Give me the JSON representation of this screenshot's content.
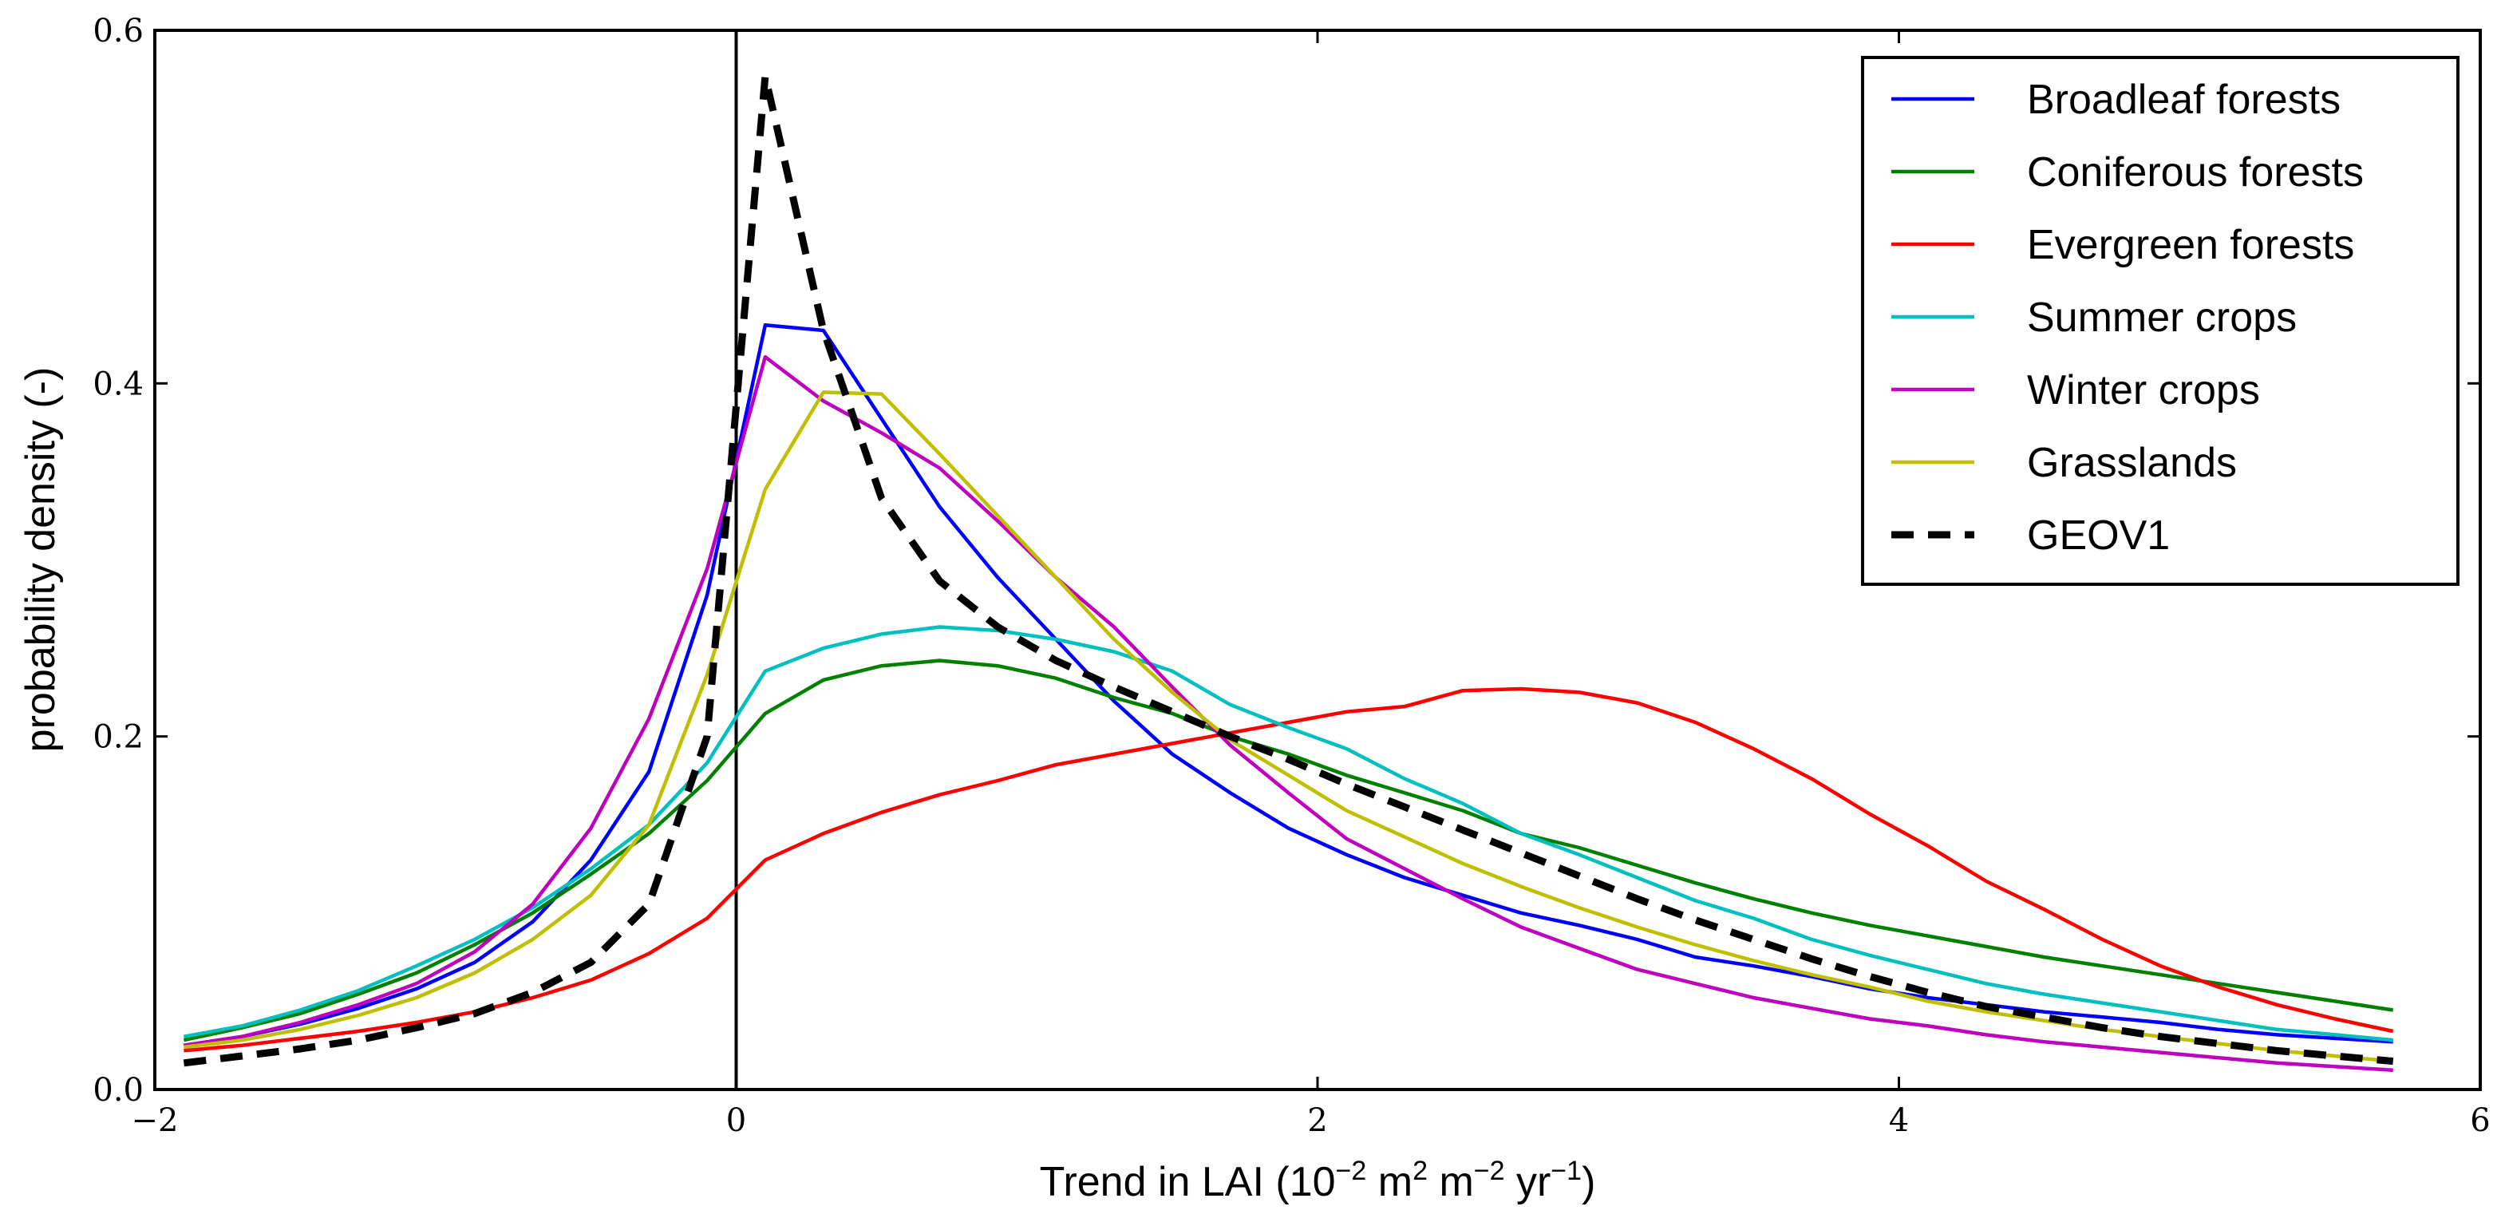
{
  "chart_data": {
    "type": "line",
    "title": "",
    "xlabel": "Trend in LAI (10⁻² m² m⁻² yr⁻¹)",
    "xlabel_parts": {
      "pre": "Trend in LAI (10",
      "e1": "−2",
      "m1": " m",
      "e2": "2",
      "m2": " m",
      "e3": "−2",
      "m3": " yr",
      "e4": "−1",
      "post": ")"
    },
    "ylabel": "probability density (-)",
    "xlim": [
      -2,
      6
    ],
    "ylim": [
      0,
      0.6
    ],
    "xticks": [
      -2,
      0,
      2,
      4,
      6
    ],
    "xtick_labels": [
      "−2",
      "0",
      "2",
      "4",
      "6"
    ],
    "yticks": [
      0,
      0.2,
      0.4,
      0.6
    ],
    "ytick_labels": [
      "0.0",
      "0.2",
      "0.4",
      "0.6"
    ],
    "grid": false,
    "legend_position": "top-right",
    "vline_x": 0,
    "x": [
      -1.9,
      -1.7,
      -1.5,
      -1.3,
      -1.1,
      -0.9,
      -0.7,
      -0.5,
      -0.3,
      -0.1,
      0.1,
      0.3,
      0.5,
      0.7,
      0.9,
      1.1,
      1.3,
      1.5,
      1.7,
      1.9,
      2.1,
      2.3,
      2.5,
      2.7,
      2.9,
      3.1,
      3.3,
      3.5,
      3.7,
      3.9,
      4.1,
      4.3,
      4.5,
      4.7,
      4.9,
      5.1,
      5.3,
      5.5,
      5.7
    ],
    "series": [
      {
        "name": "Broadleaf forests",
        "color": "#0000ff",
        "dashed": false,
        "values": [
          0.025,
          0.03,
          0.037,
          0.046,
          0.057,
          0.072,
          0.095,
          0.13,
          0.18,
          0.28,
          0.433,
          0.43,
          0.38,
          0.33,
          0.29,
          0.255,
          0.22,
          0.19,
          0.168,
          0.148,
          0.133,
          0.12,
          0.11,
          0.1,
          0.093,
          0.085,
          0.075,
          0.07,
          0.064,
          0.057,
          0.052,
          0.048,
          0.044,
          0.041,
          0.038,
          0.034,
          0.031,
          0.029,
          0.027
        ]
      },
      {
        "name": "Coniferous forests",
        "color": "#008000",
        "dashed": false,
        "values": [
          0.028,
          0.035,
          0.043,
          0.054,
          0.066,
          0.082,
          0.1,
          0.122,
          0.145,
          0.175,
          0.213,
          0.232,
          0.24,
          0.243,
          0.24,
          0.233,
          0.222,
          0.213,
          0.2,
          0.19,
          0.178,
          0.168,
          0.158,
          0.145,
          0.137,
          0.127,
          0.117,
          0.108,
          0.1,
          0.093,
          0.087,
          0.081,
          0.075,
          0.07,
          0.065,
          0.06,
          0.055,
          0.05,
          0.045
        ]
      },
      {
        "name": "Evergreen forests",
        "color": "#ff0000",
        "dashed": false,
        "values": [
          0.022,
          0.025,
          0.029,
          0.033,
          0.038,
          0.044,
          0.052,
          0.062,
          0.077,
          0.097,
          0.13,
          0.145,
          0.157,
          0.167,
          0.175,
          0.184,
          0.19,
          0.196,
          0.202,
          0.208,
          0.214,
          0.217,
          0.226,
          0.227,
          0.225,
          0.219,
          0.208,
          0.193,
          0.176,
          0.156,
          0.138,
          0.118,
          0.102,
          0.085,
          0.07,
          0.058,
          0.048,
          0.04,
          0.033
        ]
      },
      {
        "name": "Summer crops",
        "color": "#00bfbf",
        "dashed": false,
        "values": [
          0.03,
          0.036,
          0.045,
          0.056,
          0.07,
          0.085,
          0.103,
          0.125,
          0.15,
          0.185,
          0.237,
          0.25,
          0.258,
          0.262,
          0.26,
          0.255,
          0.248,
          0.237,
          0.218,
          0.205,
          0.193,
          0.176,
          0.162,
          0.145,
          0.133,
          0.12,
          0.107,
          0.097,
          0.085,
          0.076,
          0.068,
          0.06,
          0.054,
          0.049,
          0.044,
          0.039,
          0.034,
          0.031,
          0.028
        ]
      },
      {
        "name": "Winter crops",
        "color": "#bf00bf",
        "dashed": false,
        "values": [
          0.025,
          0.03,
          0.038,
          0.048,
          0.06,
          0.078,
          0.105,
          0.148,
          0.21,
          0.295,
          0.415,
          0.39,
          0.372,
          0.352,
          0.322,
          0.29,
          0.262,
          0.228,
          0.195,
          0.168,
          0.142,
          0.125,
          0.108,
          0.092,
          0.08,
          0.068,
          0.06,
          0.052,
          0.046,
          0.04,
          0.036,
          0.031,
          0.027,
          0.024,
          0.021,
          0.018,
          0.015,
          0.013,
          0.011
        ]
      },
      {
        "name": "Grasslands",
        "color": "#bfbf00",
        "dashed": false,
        "values": [
          0.024,
          0.028,
          0.034,
          0.042,
          0.052,
          0.066,
          0.085,
          0.11,
          0.15,
          0.235,
          0.34,
          0.395,
          0.394,
          0.36,
          0.325,
          0.29,
          0.255,
          0.225,
          0.198,
          0.178,
          0.158,
          0.143,
          0.128,
          0.115,
          0.103,
          0.092,
          0.082,
          0.073,
          0.065,
          0.058,
          0.05,
          0.044,
          0.039,
          0.034,
          0.03,
          0.026,
          0.022,
          0.019,
          0.016
        ]
      },
      {
        "name": "GEOV1",
        "color": "#000000",
        "dashed": true,
        "values": [
          0.015,
          0.019,
          0.023,
          0.028,
          0.035,
          0.043,
          0.055,
          0.072,
          0.105,
          0.2,
          0.574,
          0.43,
          0.335,
          0.288,
          0.262,
          0.243,
          0.228,
          0.214,
          0.2,
          0.187,
          0.173,
          0.16,
          0.147,
          0.134,
          0.121,
          0.108,
          0.096,
          0.085,
          0.074,
          0.064,
          0.055,
          0.047,
          0.041,
          0.035,
          0.03,
          0.026,
          0.022,
          0.019,
          0.016
        ]
      }
    ]
  }
}
